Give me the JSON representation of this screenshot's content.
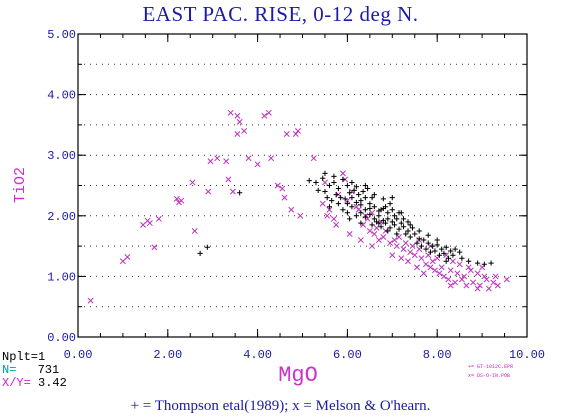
{
  "chart_data": {
    "type": "scatter",
    "title": "EAST PAC. RISE, 0-12 deg N.",
    "xlabel": "MgO",
    "ylabel": "TiO2",
    "xlim": [
      0,
      10
    ],
    "ylim": [
      0,
      5
    ],
    "x_ticks": [
      "0.00",
      "2.00",
      "4.00",
      "6.00",
      "8.00",
      "10.00"
    ],
    "y_ticks": [
      "0.00",
      "1.00",
      "2.00",
      "3.00",
      "4.00",
      "5.00"
    ],
    "grid": true,
    "colors": {
      "thompson": "#000000",
      "melson": "#bb33bb",
      "title": "#1a1aa6",
      "n_label": "#00a0a0"
    },
    "series": [
      {
        "name": "Thompson etal(1989)",
        "marker": "+",
        "points": [
          [
            2.88,
            1.48
          ],
          [
            2.72,
            1.38
          ],
          [
            3.6,
            2.38
          ],
          [
            5.15,
            2.58
          ],
          [
            5.3,
            2.55
          ],
          [
            5.45,
            2.62
          ],
          [
            5.5,
            2.4
          ],
          [
            5.6,
            2.5
          ],
          [
            5.7,
            2.55
          ],
          [
            5.8,
            2.45
          ],
          [
            5.9,
            2.6
          ],
          [
            6.0,
            2.5
          ],
          [
            6.1,
            2.55
          ],
          [
            5.55,
            2.3
          ],
          [
            5.65,
            2.25
          ],
          [
            5.75,
            2.35
          ],
          [
            5.85,
            2.3
          ],
          [
            5.95,
            2.28
          ],
          [
            6.05,
            2.38
          ],
          [
            6.15,
            2.42
          ],
          [
            6.25,
            2.35
          ],
          [
            6.35,
            2.4
          ],
          [
            6.45,
            2.45
          ],
          [
            6.55,
            2.3
          ],
          [
            6.0,
            2.2
          ],
          [
            6.1,
            2.15
          ],
          [
            6.2,
            2.22
          ],
          [
            6.3,
            2.18
          ],
          [
            6.4,
            2.1
          ],
          [
            6.5,
            2.2
          ],
          [
            6.6,
            2.15
          ],
          [
            6.7,
            2.08
          ],
          [
            6.8,
            2.12
          ],
          [
            6.9,
            2.05
          ],
          [
            7.0,
            2.1
          ],
          [
            6.2,
            2.0
          ],
          [
            6.3,
            2.05
          ],
          [
            6.4,
            1.98
          ],
          [
            6.5,
            2.02
          ],
          [
            6.6,
            1.95
          ],
          [
            6.7,
            2.0
          ],
          [
            6.8,
            1.92
          ],
          [
            6.9,
            1.95
          ],
          [
            7.0,
            1.9
          ],
          [
            7.1,
            1.95
          ],
          [
            7.2,
            1.88
          ],
          [
            6.55,
            1.85
          ],
          [
            6.65,
            1.9
          ],
          [
            6.75,
            1.82
          ],
          [
            6.85,
            1.88
          ],
          [
            6.95,
            1.8
          ],
          [
            7.05,
            1.85
          ],
          [
            7.15,
            1.78
          ],
          [
            7.25,
            1.82
          ],
          [
            7.35,
            1.75
          ],
          [
            7.45,
            1.8
          ],
          [
            6.75,
            2.1
          ],
          [
            6.85,
            2.15
          ],
          [
            6.95,
            2.2
          ],
          [
            7.05,
            2.0
          ],
          [
            7.15,
            2.05
          ],
          [
            7.25,
            1.95
          ],
          [
            7.35,
            1.9
          ],
          [
            6.4,
            2.3
          ],
          [
            6.6,
            2.35
          ],
          [
            6.8,
            2.28
          ],
          [
            5.8,
            2.2
          ],
          [
            5.9,
            2.1
          ],
          [
            6.0,
            2.05
          ],
          [
            7.3,
            1.7
          ],
          [
            7.4,
            1.65
          ],
          [
            7.5,
            1.7
          ],
          [
            7.6,
            1.62
          ],
          [
            7.7,
            1.6
          ],
          [
            7.8,
            1.55
          ],
          [
            7.9,
            1.5
          ],
          [
            8.0,
            1.52
          ],
          [
            8.1,
            1.45
          ],
          [
            8.2,
            1.48
          ],
          [
            8.3,
            1.42
          ],
          [
            7.55,
            1.55
          ],
          [
            7.65,
            1.5
          ],
          [
            7.75,
            1.45
          ],
          [
            7.85,
            1.4
          ],
          [
            7.95,
            1.42
          ],
          [
            8.05,
            1.35
          ],
          [
            8.15,
            1.38
          ],
          [
            8.25,
            1.3
          ],
          [
            8.35,
            1.35
          ],
          [
            8.4,
            1.45
          ],
          [
            8.5,
            1.4
          ],
          [
            8.55,
            1.3
          ],
          [
            8.2,
            1.25
          ],
          [
            8.7,
            1.25
          ],
          [
            8.9,
            1.22
          ],
          [
            9.05,
            1.2
          ],
          [
            9.2,
            1.22
          ],
          [
            6.1,
            2.3
          ],
          [
            6.3,
            2.25
          ],
          [
            6.5,
            2.12
          ],
          [
            6.7,
            1.88
          ],
          [
            6.9,
            1.75
          ],
          [
            7.1,
            1.7
          ],
          [
            5.5,
            2.7
          ],
          [
            5.7,
            2.65
          ],
          [
            6.2,
            2.48
          ],
          [
            6.4,
            2.5
          ],
          [
            7.0,
            2.3
          ],
          [
            7.2,
            2.05
          ],
          [
            7.4,
            1.85
          ],
          [
            7.6,
            1.75
          ],
          [
            7.8,
            1.68
          ],
          [
            8.0,
            1.6
          ],
          [
            5.35,
            2.42
          ],
          [
            5.6,
            2.15
          ],
          [
            6.05,
            1.95
          ],
          [
            6.3,
            1.88
          ]
        ]
      },
      {
        "name": "Melson & O'hearn",
        "marker": "x",
        "points": [
          [
            0.28,
            0.6
          ],
          [
            1.0,
            1.25
          ],
          [
            1.1,
            1.32
          ],
          [
            1.45,
            1.85
          ],
          [
            1.55,
            1.92
          ],
          [
            1.6,
            1.88
          ],
          [
            1.8,
            1.95
          ],
          [
            1.7,
            1.48
          ],
          [
            2.2,
            2.28
          ],
          [
            2.25,
            2.22
          ],
          [
            2.3,
            2.25
          ],
          [
            2.55,
            2.55
          ],
          [
            2.6,
            1.75
          ],
          [
            2.9,
            2.4
          ],
          [
            2.95,
            2.9
          ],
          [
            3.1,
            2.95
          ],
          [
            3.3,
            2.9
          ],
          [
            3.35,
            2.6
          ],
          [
            3.45,
            2.4
          ],
          [
            3.4,
            3.7
          ],
          [
            3.55,
            3.65
          ],
          [
            3.6,
            3.55
          ],
          [
            3.7,
            3.4
          ],
          [
            3.55,
            3.35
          ],
          [
            3.8,
            2.95
          ],
          [
            4.0,
            2.85
          ],
          [
            4.15,
            3.65
          ],
          [
            4.25,
            3.7
          ],
          [
            4.3,
            2.95
          ],
          [
            4.45,
            2.5
          ],
          [
            4.55,
            2.45
          ],
          [
            4.6,
            2.3
          ],
          [
            4.65,
            3.35
          ],
          [
            4.85,
            3.35
          ],
          [
            4.9,
            3.4
          ],
          [
            4.75,
            2.1
          ],
          [
            4.95,
            2.0
          ],
          [
            5.25,
            2.95
          ],
          [
            5.5,
            2.55
          ],
          [
            5.6,
            2.1
          ],
          [
            5.7,
            1.95
          ],
          [
            5.9,
            2.7
          ],
          [
            5.95,
            2.6
          ],
          [
            6.1,
            2.4
          ],
          [
            6.25,
            2.1
          ],
          [
            6.35,
            1.85
          ],
          [
            6.5,
            1.75
          ],
          [
            6.6,
            1.7
          ],
          [
            6.7,
            1.6
          ],
          [
            6.8,
            1.65
          ],
          [
            6.95,
            1.55
          ],
          [
            7.1,
            1.5
          ],
          [
            7.25,
            1.45
          ],
          [
            7.4,
            1.4
          ],
          [
            7.5,
            1.35
          ],
          [
            7.65,
            1.3
          ],
          [
            7.75,
            1.2
          ],
          [
            7.85,
            1.15
          ],
          [
            7.95,
            1.1
          ],
          [
            8.05,
            1.05
          ],
          [
            8.15,
            1.0
          ],
          [
            8.25,
            0.95
          ],
          [
            8.4,
            0.9
          ],
          [
            8.55,
            0.95
          ],
          [
            8.65,
            0.85
          ],
          [
            8.8,
            0.9
          ],
          [
            8.95,
            0.85
          ],
          [
            9.1,
            0.95
          ],
          [
            9.25,
            0.9
          ],
          [
            9.35,
            0.85
          ],
          [
            9.55,
            0.95
          ],
          [
            8.5,
            1.2
          ],
          [
            8.7,
            1.15
          ],
          [
            8.9,
            1.05
          ],
          [
            9.05,
            1.0
          ],
          [
            9.3,
            1.0
          ],
          [
            7.0,
            1.35
          ],
          [
            7.2,
            1.3
          ],
          [
            7.35,
            1.25
          ],
          [
            7.55,
            1.15
          ],
          [
            7.7,
            1.05
          ],
          [
            6.45,
            1.95
          ],
          [
            6.55,
            2.05
          ],
          [
            6.65,
            1.8
          ],
          [
            6.75,
            1.9
          ],
          [
            6.85,
            1.75
          ],
          [
            7.05,
            1.6
          ],
          [
            7.15,
            1.65
          ],
          [
            7.3,
            1.55
          ],
          [
            7.45,
            1.5
          ],
          [
            7.6,
            1.45
          ],
          [
            7.8,
            1.35
          ],
          [
            7.9,
            1.25
          ],
          [
            8.0,
            1.3
          ],
          [
            8.1,
            1.15
          ],
          [
            8.3,
            1.1
          ],
          [
            8.45,
            1.05
          ],
          [
            8.6,
            1.0
          ],
          [
            5.8,
            2.35
          ],
          [
            6.0,
            2.25
          ],
          [
            6.2,
            2.15
          ],
          [
            6.4,
            2.0
          ],
          [
            5.45,
            2.2
          ],
          [
            5.55,
            2.0
          ],
          [
            5.75,
            1.85
          ],
          [
            6.05,
            1.7
          ],
          [
            6.3,
            1.6
          ],
          [
            6.55,
            1.5
          ],
          [
            7.6,
            1.6
          ],
          [
            7.85,
            1.5
          ],
          [
            8.2,
            1.35
          ],
          [
            8.35,
            1.25
          ],
          [
            8.75,
            1.1
          ],
          [
            9.0,
            1.15
          ],
          [
            9.15,
            0.8
          ],
          [
            8.9,
            0.8
          ],
          [
            8.3,
            0.85
          ]
        ]
      }
    ]
  },
  "info": {
    "nplt_label": "Nplt=1",
    "n_label": "N=",
    "n_value": "731",
    "xy_label": "X/Y=",
    "xy_value": "3.42"
  },
  "legend": {
    "line1": "+= GT-1012C.EPR",
    "line2": "x= DS-O-IN.POB"
  },
  "footer": "+ = Thompson etal(1989); x = Melson & O'hearn."
}
